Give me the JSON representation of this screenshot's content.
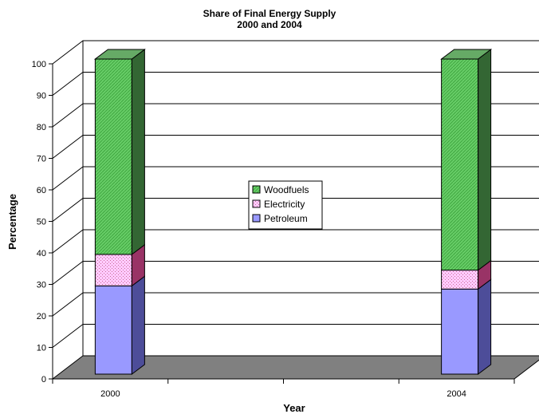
{
  "chart_data": {
    "type": "bar",
    "subtype": "stacked-3d",
    "title": "Share of Final Energy Supply",
    "subtitle": "2000 and 2004",
    "xlabel": "Year",
    "ylabel": "Percentage",
    "categories": [
      "2000",
      "2004"
    ],
    "ylim": [
      0,
      100
    ],
    "yticks": [
      "0",
      "10",
      "20",
      "30",
      "40",
      "50",
      "60",
      "70",
      "80",
      "90",
      "100"
    ],
    "grid": true,
    "legend_position": "center",
    "series": [
      {
        "name": "Petroleum",
        "values": [
          28,
          27
        ],
        "color": "#9999ff"
      },
      {
        "name": "Electricity",
        "values": [
          10,
          6
        ],
        "color": "#ffccff"
      },
      {
        "name": "Woodfuels",
        "values": [
          62,
          67
        ],
        "color": "#66cc66"
      }
    ],
    "legend": [
      "Woodfuels",
      "Electricity",
      "Petroleum"
    ]
  }
}
